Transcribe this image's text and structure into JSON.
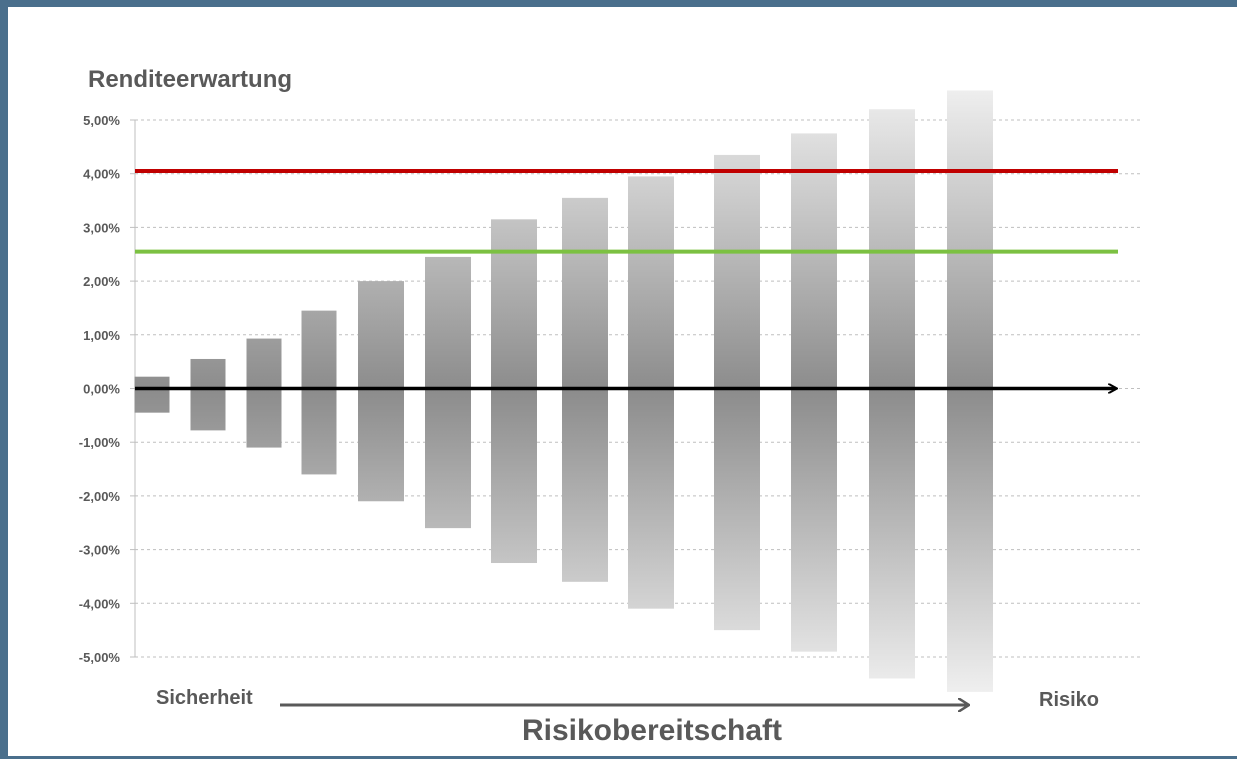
{
  "chart_data": {
    "type": "bar",
    "subtype": "floating-range",
    "ylabel": "Renditeerwartung",
    "xlabel": "Risikobereitschaft",
    "x_start_label": "Sicherheit",
    "x_end_label": "Risiko",
    "ylim": [
      -5,
      5
    ],
    "yticks": [
      {
        "value": 5,
        "label": "5,00%"
      },
      {
        "value": 4,
        "label": "4,00%"
      },
      {
        "value": 3,
        "label": "3,00%"
      },
      {
        "value": 2,
        "label": "2,00%"
      },
      {
        "value": 1,
        "label": "1,00%"
      },
      {
        "value": 0,
        "label": "0,00%"
      },
      {
        "value": -1,
        "label": "-1,00%"
      },
      {
        "value": -2,
        "label": "-2,00%"
      },
      {
        "value": -3,
        "label": "-3,00%"
      },
      {
        "value": -4,
        "label": "-4,00%"
      },
      {
        "value": -5,
        "label": "-5,00%"
      }
    ],
    "grid": true,
    "ranges": [
      {
        "low": -0.45,
        "high": 0.22
      },
      {
        "low": -0.78,
        "high": 0.55
      },
      {
        "low": -1.1,
        "high": 0.93
      },
      {
        "low": -1.6,
        "high": 1.45
      },
      {
        "low": -2.1,
        "high": 2.0
      },
      {
        "low": -2.6,
        "high": 2.45
      },
      {
        "low": -3.25,
        "high": 3.15
      },
      {
        "low": -3.6,
        "high": 3.55
      },
      {
        "low": -4.1,
        "high": 3.95
      },
      {
        "low": -4.5,
        "high": 4.35
      },
      {
        "low": -4.9,
        "high": 4.75
      },
      {
        "low": -5.4,
        "high": 5.2
      },
      {
        "low": -5.65,
        "high": 5.55
      }
    ],
    "reference_lines": [
      {
        "value": 4.05,
        "color": "#c00000"
      },
      {
        "value": 2.55,
        "color": "#7cc142"
      }
    ],
    "colors": {
      "bar_dark": "#8c8c8c",
      "bar_light": "#efefef",
      "zero_arrow": "#000000",
      "x_arrow": "#595959",
      "text": "#595959",
      "frame": "#4a6f8c"
    }
  }
}
